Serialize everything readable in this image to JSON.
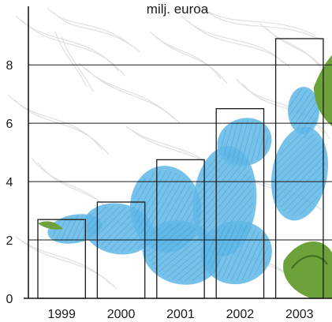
{
  "chart_data": {
    "type": "bar",
    "title": "milj. euroa",
    "categories": [
      "1999",
      "2000",
      "2001",
      "2002",
      "2003"
    ],
    "values": [
      2.7,
      3.3,
      4.75,
      6.5,
      8.9
    ],
    "ylim": [
      0,
      9.9
    ],
    "yticks": [
      "0",
      "2",
      "4",
      "6",
      "8"
    ],
    "grid": true,
    "legend": "none",
    "colors": {
      "background": "#ffffff",
      "watermark": "#dcdcdc",
      "bar_fill": "#ffffff",
      "bar_stroke": "#1a1a1a",
      "flower_blue": "#5fb7e6",
      "flower_blue_dark": "#2f8fc9",
      "leaf_green": "#6da23a",
      "leaf_dark": "#3f6d1f",
      "grid": "#1a1a1a",
      "text": "#1a1a1a"
    }
  }
}
